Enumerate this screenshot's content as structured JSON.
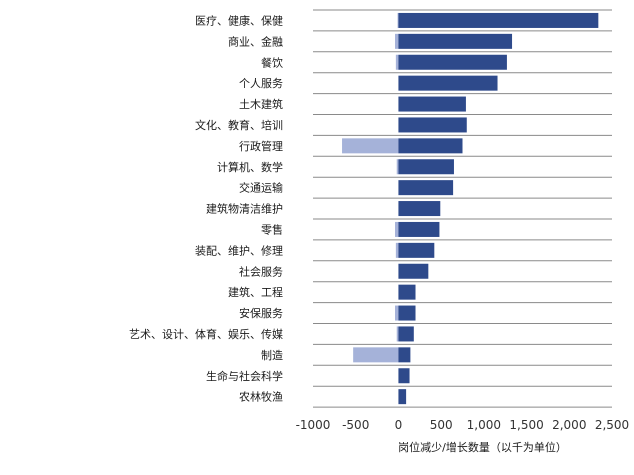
{
  "chart_data": {
    "type": "bar",
    "orientation": "horizontal",
    "categories": [
      "医疗、健康、保健",
      "商业、金融",
      "餐饮",
      "个人服务",
      "土木建筑",
      "文化、教育、培训",
      "行政管理",
      "计算机、数学",
      "交通运输",
      "建筑物清洁维护",
      "零售",
      "装配、维护、修理",
      "社会服务",
      "建筑、工程",
      "安保服务",
      "艺术、设计、体育、娱乐、传媒",
      "制造",
      "生命与社会科学",
      "农林牧渔"
    ],
    "series": [
      {
        "values": [
          -10,
          -40,
          -30,
          0,
          0,
          0,
          -660,
          -20,
          0,
          0,
          -40,
          -30,
          0,
          0,
          -40,
          -20,
          -530,
          0,
          0
        ],
        "color": "#a5b2d9"
      },
      {
        "values": [
          2340,
          1330,
          1270,
          1160,
          790,
          800,
          750,
          650,
          640,
          490,
          480,
          420,
          350,
          200,
          200,
          180,
          140,
          130,
          90
        ],
        "color": "#2e4a8b"
      }
    ],
    "xlabel": "岗位减少/增长数量（以千为单位）",
    "xlim": [
      -1000,
      2500
    ],
    "xticks": [
      "-1000",
      "-500",
      "0",
      "500",
      "1,000",
      "1,500",
      "2,000",
      "2,500"
    ],
    "grid": "horizontal-separators"
  }
}
